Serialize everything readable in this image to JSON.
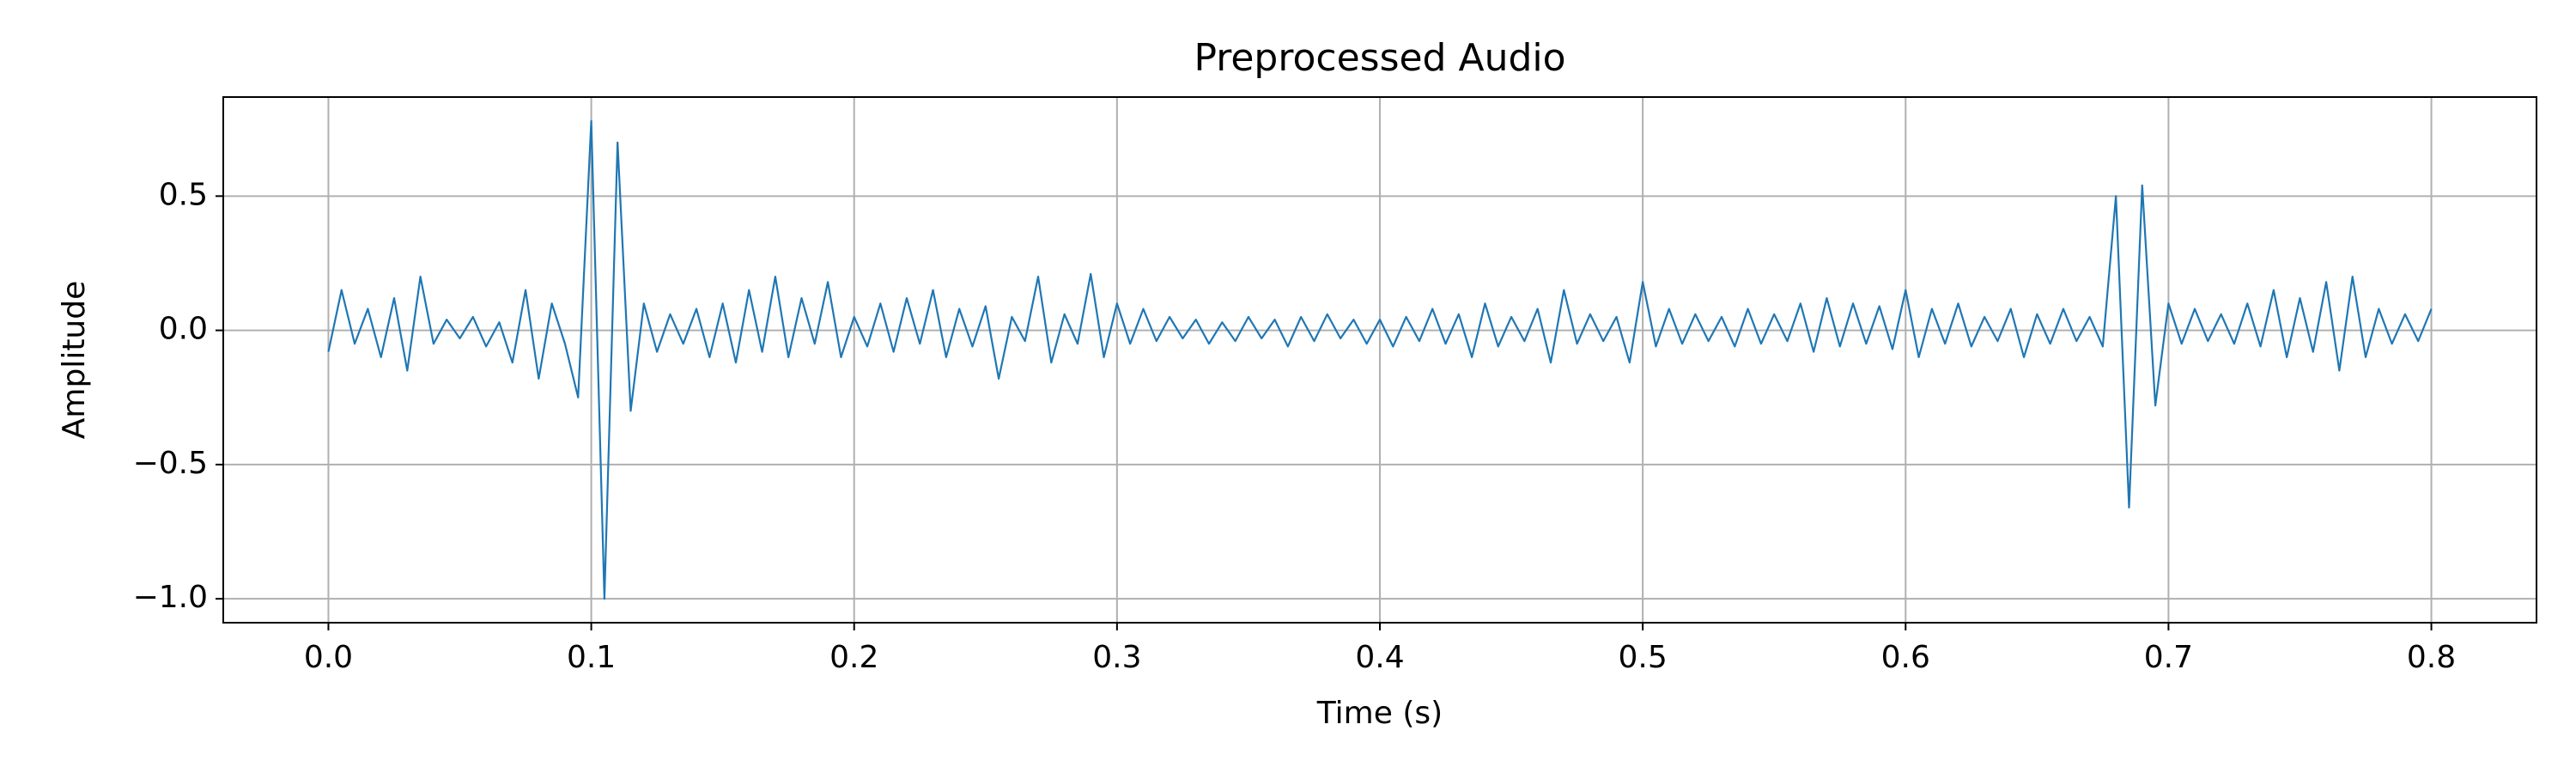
{
  "chart_data": {
    "type": "line",
    "title": "Preprocessed Audio",
    "xlabel": "Time (s)",
    "ylabel": "Amplitude",
    "color": "#1f77b4",
    "grid": true,
    "xlim": [
      -0.04,
      0.84
    ],
    "ylim": [
      -1.089,
      0.869
    ],
    "xticks": [
      {
        "value": 0,
        "label": "0.0"
      },
      0.1,
      0.2,
      0.3,
      0.4,
      0.5,
      0.6,
      0.7,
      0.8
    ],
    "yticks": [
      {
        "value": -1,
        "label": "−1.0"
      },
      {
        "value": -0.5,
        "label": "−0.5"
      },
      {
        "value": 0,
        "label": "0.0"
      },
      0.5
    ],
    "x": [
      0,
      0.005,
      0.01,
      0.015,
      0.02,
      0.025,
      0.03,
      0.035,
      0.04,
      0.045,
      0.05,
      0.055,
      0.06,
      0.065,
      0.07,
      0.075,
      0.08,
      0.085,
      0.09,
      0.095,
      0.1,
      0.105,
      0.11,
      0.115,
      0.12,
      0.125,
      0.13,
      0.135,
      0.14,
      0.145,
      0.15,
      0.155,
      0.16,
      0.165,
      0.17,
      0.175,
      0.18,
      0.185,
      0.19,
      0.195,
      0.2,
      0.205,
      0.21,
      0.215,
      0.22,
      0.225,
      0.23,
      0.235,
      0.24,
      0.245,
      0.25,
      0.255,
      0.26,
      0.265,
      0.27,
      0.275,
      0.28,
      0.285,
      0.29,
      0.295,
      0.3,
      0.305,
      0.31,
      0.315,
      0.32,
      0.325,
      0.33,
      0.335,
      0.34,
      0.345,
      0.35,
      0.355,
      0.36,
      0.365,
      0.37,
      0.375,
      0.38,
      0.385,
      0.39,
      0.395,
      0.4,
      0.405,
      0.41,
      0.415,
      0.42,
      0.425,
      0.43,
      0.435,
      0.44,
      0.445,
      0.45,
      0.455,
      0.46,
      0.465,
      0.47,
      0.475,
      0.48,
      0.485,
      0.49,
      0.495,
      0.5,
      0.505,
      0.51,
      0.515,
      0.52,
      0.525,
      0.53,
      0.535,
      0.54,
      0.545,
      0.55,
      0.555,
      0.56,
      0.565,
      0.57,
      0.575,
      0.58,
      0.585,
      0.59,
      0.595,
      0.6,
      0.605,
      0.61,
      0.615,
      0.62,
      0.625,
      0.63,
      0.635,
      0.64,
      0.645,
      0.65,
      0.655,
      0.66,
      0.665,
      0.67,
      0.675,
      0.68,
      0.685,
      0.69,
      0.695,
      0.7,
      0.705,
      0.71,
      0.715,
      0.72,
      0.725,
      0.73,
      0.735,
      0.74,
      0.745,
      0.75,
      0.755,
      0.76,
      0.765,
      0.77,
      0.775,
      0.78,
      0.785,
      0.79,
      0.795,
      0.8
    ],
    "values": [
      -0.08,
      0.15,
      -0.05,
      0.08,
      -0.1,
      0.12,
      -0.15,
      0.2,
      -0.05,
      0.04,
      -0.03,
      0.05,
      -0.06,
      0.03,
      -0.12,
      0.15,
      -0.18,
      0.1,
      -0.05,
      -0.25,
      0.78,
      -1.0,
      0.7,
      -0.3,
      0.1,
      -0.08,
      0.06,
      -0.05,
      0.08,
      -0.1,
      0.1,
      -0.12,
      0.15,
      -0.08,
      0.2,
      -0.1,
      0.12,
      -0.05,
      0.18,
      -0.1,
      0.05,
      -0.06,
      0.1,
      -0.08,
      0.12,
      -0.05,
      0.15,
      -0.1,
      0.08,
      -0.06,
      0.09,
      -0.18,
      0.05,
      -0.04,
      0.2,
      -0.12,
      0.06,
      -0.05,
      0.21,
      -0.1,
      0.1,
      -0.05,
      0.08,
      -0.04,
      0.05,
      -0.03,
      0.04,
      -0.05,
      0.03,
      -0.04,
      0.05,
      -0.03,
      0.04,
      -0.06,
      0.05,
      -0.04,
      0.06,
      -0.03,
      0.04,
      -0.05,
      0.04,
      -0.06,
      0.05,
      -0.04,
      0.08,
      -0.05,
      0.06,
      -0.1,
      0.1,
      -0.06,
      0.05,
      -0.04,
      0.08,
      -0.12,
      0.15,
      -0.05,
      0.06,
      -0.04,
      0.05,
      -0.12,
      0.18,
      -0.06,
      0.08,
      -0.05,
      0.06,
      -0.04,
      0.05,
      -0.06,
      0.08,
      -0.05,
      0.06,
      -0.04,
      0.1,
      -0.08,
      0.12,
      -0.06,
      0.1,
      -0.05,
      0.09,
      -0.07,
      0.15,
      -0.1,
      0.08,
      -0.05,
      0.1,
      -0.06,
      0.05,
      -0.04,
      0.08,
      -0.1,
      0.06,
      -0.05,
      0.08,
      -0.04,
      0.05,
      -0.06,
      0.5,
      -0.66,
      0.54,
      -0.28,
      0.1,
      -0.05,
      0.08,
      -0.04,
      0.06,
      -0.05,
      0.1,
      -0.06,
      0.15,
      -0.1,
      0.12,
      -0.08,
      0.18,
      -0.15,
      0.2,
      -0.1,
      0.08,
      -0.05,
      0.06,
      -0.04,
      0.08
    ]
  }
}
